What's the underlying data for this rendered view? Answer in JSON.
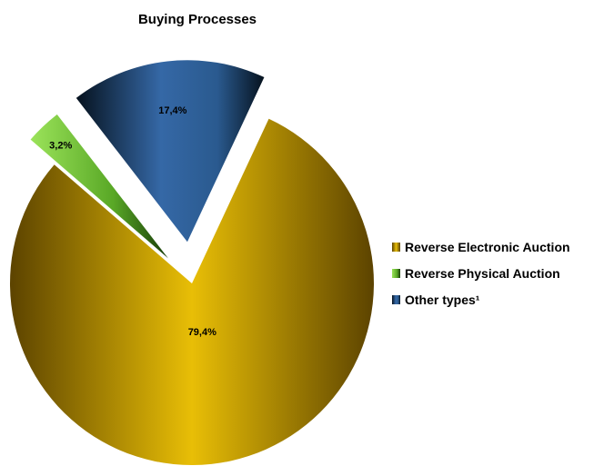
{
  "chart_data": {
    "type": "pie",
    "title": "Buying Processes",
    "legend_position": "right",
    "slices": [
      {
        "label": "Reverse Electronic Auction",
        "value": 79.4,
        "display": "79,4%",
        "color": "#e6b800",
        "exploded": false
      },
      {
        "label": "Reverse Physical Auction",
        "value": 3.2,
        "display": "3,2%",
        "color": "#6abf2e",
        "exploded": true
      },
      {
        "label": "Other types¹",
        "value": 17.4,
        "display": "17,4%",
        "color": "#2e5e9a",
        "exploded": true
      }
    ]
  }
}
